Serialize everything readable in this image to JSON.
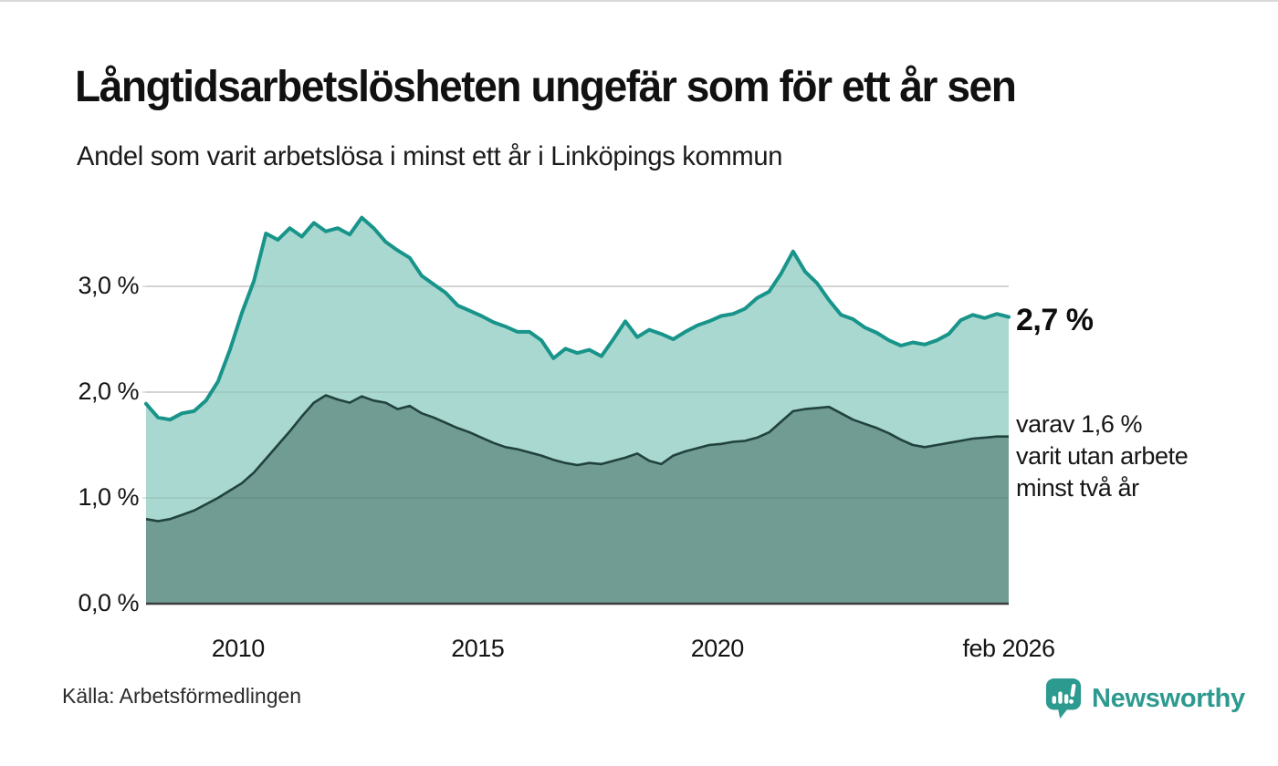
{
  "header": {
    "title": "Långtidsarbetslösheten ungefär som för ett år sen",
    "subtitle": "Andel som varit arbetslösa i minst ett år i Linköpings kommun"
  },
  "chart_data": {
    "type": "area",
    "title": "Långtidsarbetslösheten ungefär som för ett år sen",
    "subtitle": "Andel som varit arbetslösa i minst ett år i Linköpings kommun",
    "unit": "%",
    "x": [
      2008.08,
      2008.33,
      2008.58,
      2008.83,
      2009.08,
      2009.33,
      2009.58,
      2009.83,
      2010.08,
      2010.33,
      2010.58,
      2010.83,
      2011.08,
      2011.33,
      2011.58,
      2011.83,
      2012.08,
      2012.33,
      2012.58,
      2012.83,
      2013.08,
      2013.33,
      2013.58,
      2013.83,
      2014.08,
      2014.33,
      2014.58,
      2014.83,
      2015.08,
      2015.33,
      2015.58,
      2015.83,
      2016.08,
      2016.33,
      2016.58,
      2016.83,
      2017.08,
      2017.33,
      2017.58,
      2017.83,
      2018.08,
      2018.33,
      2018.58,
      2018.83,
      2019.08,
      2019.33,
      2019.58,
      2019.83,
      2020.08,
      2020.33,
      2020.58,
      2020.83,
      2021.08,
      2021.33,
      2021.58,
      2021.83,
      2022.08,
      2022.33,
      2022.58,
      2022.83,
      2023.08,
      2023.33,
      2023.58,
      2023.83,
      2024.08,
      2024.33,
      2024.58,
      2024.83,
      2025.08,
      2025.33,
      2025.58,
      2025.83,
      2026.08
    ],
    "series": [
      {
        "name": "Andel som varit arbetslösa i minst ett år",
        "line_color": "#18948a",
        "fill_color": "#a9d8d0",
        "end_value_label": "2,7 %",
        "values": [
          1.89,
          1.76,
          1.74,
          1.8,
          1.82,
          1.92,
          2.1,
          2.4,
          2.75,
          3.05,
          3.5,
          3.44,
          3.55,
          3.47,
          3.6,
          3.52,
          3.55,
          3.49,
          3.65,
          3.55,
          3.42,
          3.34,
          3.27,
          3.1,
          3.02,
          2.94,
          2.82,
          2.77,
          2.72,
          2.66,
          2.62,
          2.57,
          2.57,
          2.49,
          2.32,
          2.41,
          2.37,
          2.4,
          2.34,
          2.5,
          2.67,
          2.52,
          2.59,
          2.55,
          2.5,
          2.57,
          2.63,
          2.67,
          2.72,
          2.74,
          2.79,
          2.89,
          2.95,
          3.12,
          3.33,
          3.14,
          3.03,
          2.87,
          2.73,
          2.69,
          2.61,
          2.56,
          2.49,
          2.44,
          2.47,
          2.45,
          2.49,
          2.55,
          2.68,
          2.73,
          2.7,
          2.74,
          2.71
        ]
      },
      {
        "name": "Varav utan arbete minst två år",
        "line_color": "#21423d",
        "fill_color": "#709c94",
        "end_value_label": "1,6 %",
        "values": [
          0.8,
          0.78,
          0.8,
          0.84,
          0.88,
          0.94,
          1.0,
          1.07,
          1.14,
          1.24,
          1.37,
          1.5,
          1.63,
          1.77,
          1.9,
          1.97,
          1.93,
          1.9,
          1.96,
          1.92,
          1.9,
          1.84,
          1.87,
          1.8,
          1.76,
          1.71,
          1.66,
          1.62,
          1.57,
          1.52,
          1.48,
          1.46,
          1.43,
          1.4,
          1.36,
          1.33,
          1.31,
          1.33,
          1.32,
          1.35,
          1.38,
          1.42,
          1.35,
          1.32,
          1.4,
          1.44,
          1.47,
          1.5,
          1.51,
          1.53,
          1.54,
          1.57,
          1.62,
          1.72,
          1.82,
          1.84,
          1.85,
          1.86,
          1.8,
          1.74,
          1.7,
          1.66,
          1.61,
          1.55,
          1.5,
          1.48,
          1.5,
          1.52,
          1.54,
          1.56,
          1.57,
          1.58,
          1.58
        ]
      }
    ],
    "ylim": [
      0,
      3.8
    ],
    "yticks": [
      {
        "value": 0,
        "label": "0,0 %"
      },
      {
        "value": 1,
        "label": "1,0 %"
      },
      {
        "value": 2,
        "label": "2,0 %"
      },
      {
        "value": 3,
        "label": "3,0 %"
      }
    ],
    "xticks": [
      {
        "value": 2010.0,
        "label": "2010"
      },
      {
        "value": 2015.0,
        "label": "2015"
      },
      {
        "value": 2020.0,
        "label": "2020"
      },
      {
        "value": 2026.08,
        "label": "feb 2026"
      }
    ],
    "grid": true,
    "legend_position": "none",
    "annotations": {
      "end_value_main": "2,7 %",
      "end_note_lines": [
        "varav 1,6 %",
        "varit utan arbete",
        "minst två år"
      ]
    },
    "colors": {
      "grid": "#d7d7d7",
      "baseline": "#3d3d3d",
      "text": "#141414"
    }
  },
  "footer": {
    "source": "Källa: Arbetsförmedlingen",
    "brand": "Newsworthy",
    "brand_color": "#2d9a8f"
  }
}
